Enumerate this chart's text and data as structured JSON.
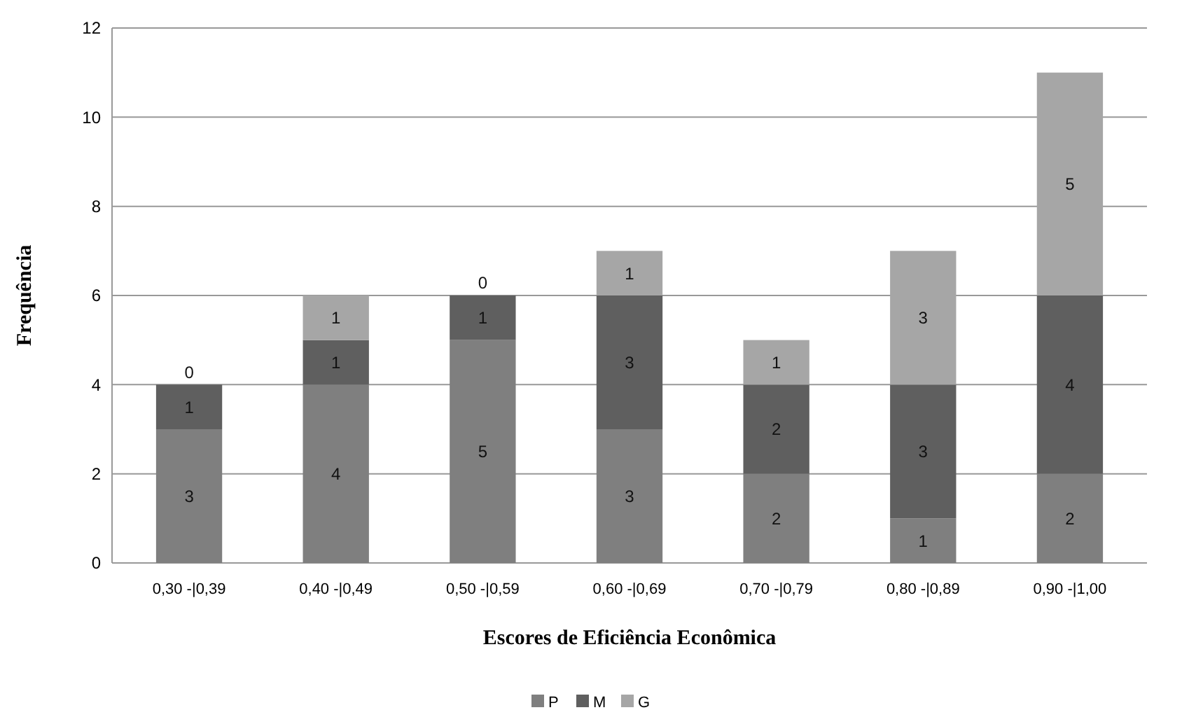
{
  "chart_data": {
    "type": "bar",
    "stacked": true,
    "xlabel": "Escores de Eficiência Econômica",
    "ylabel": "Frequência",
    "categories": [
      "0,30 -|0,39",
      "0,40 -|0,49",
      "0,50 -|0,59",
      "0,60 -|0,69",
      "0,70 -|0,79",
      "0,80 -|0,89",
      "0,90 -|1,00"
    ],
    "series": [
      {
        "name": "P",
        "color": "#7f7f7f",
        "values": [
          3,
          4,
          5,
          3,
          2,
          1,
          2
        ]
      },
      {
        "name": "M",
        "color": "#5f5f5f",
        "values": [
          1,
          1,
          1,
          3,
          2,
          3,
          4
        ]
      },
      {
        "name": "G",
        "color": "#a6a6a6",
        "values": [
          0,
          1,
          0,
          1,
          1,
          3,
          5
        ]
      }
    ],
    "ylim": [
      0,
      12
    ],
    "yticks": [
      0,
      2,
      4,
      6,
      8,
      10,
      12
    ],
    "grid": "y",
    "data_labels": true,
    "legend": "bottom"
  }
}
